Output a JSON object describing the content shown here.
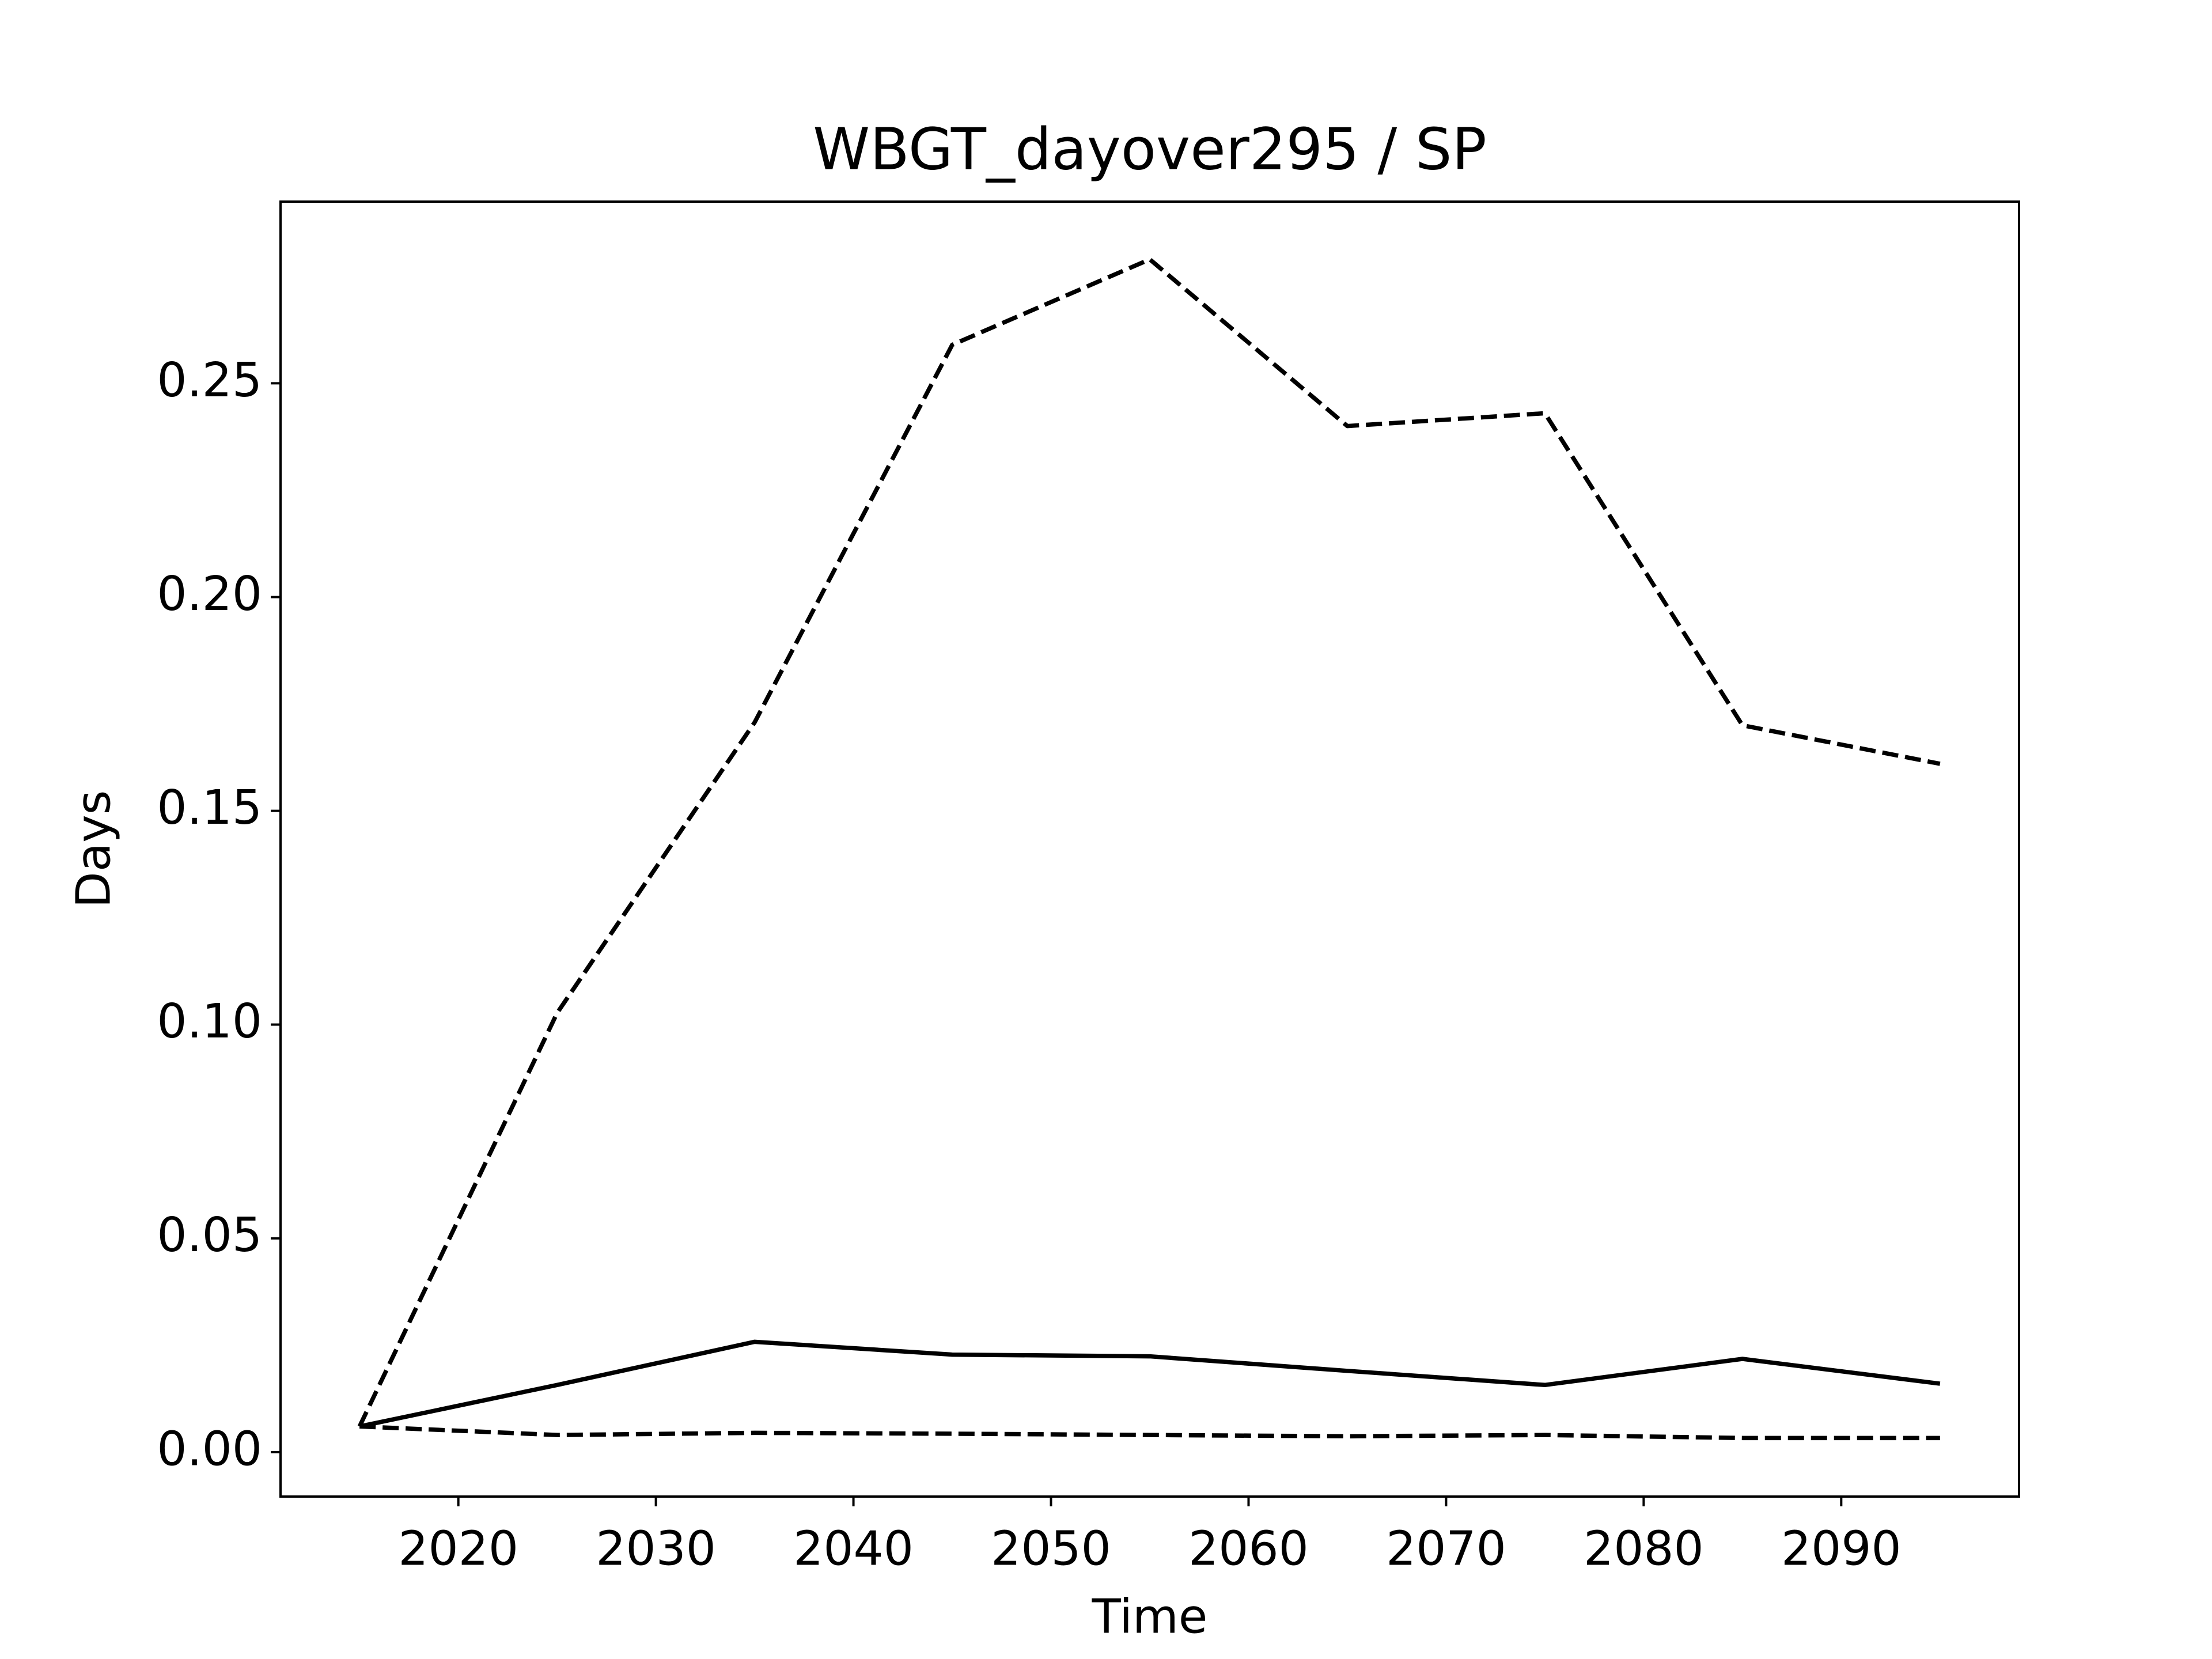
{
  "chart_data": {
    "type": "line",
    "title": "WBGT_dayover295 / SP",
    "x_label": "Time",
    "y_label": "Days",
    "x": [
      2015,
      2025,
      2035,
      2045,
      2055,
      2065,
      2075,
      2085,
      2095
    ],
    "series": [
      {
        "color": "#000000",
        "linestyle": "dashed",
        "values": [
          0.006,
          0.1027,
          0.1707,
          0.259,
          0.279,
          0.24,
          0.243,
          0.17,
          0.161
        ]
      },
      {
        "color": "#000000",
        "linestyle": "solid",
        "values": [
          0.006,
          0.0157,
          0.0258,
          0.0228,
          0.0224,
          0.019,
          0.0157,
          0.0218,
          0.016
        ]
      },
      {
        "color": "#000000",
        "linestyle": "dashed",
        "values": [
          0.006,
          0.004,
          0.0045,
          0.0043,
          0.004,
          0.0037,
          0.004,
          0.0033,
          0.0033
        ]
      }
    ],
    "xlim": [
      2011,
      2099
    ],
    "xticks": [
      2020,
      2030,
      2040,
      2050,
      2060,
      2070,
      2080,
      2090
    ],
    "ylim": [
      -0.0104,
      0.2925
    ],
    "yticks": [
      {
        "value": 0,
        "label": "0.00"
      },
      0.05,
      {
        "value": 0.1,
        "label": "0.10"
      },
      0.15,
      {
        "value": 0.2,
        "label": "0.20"
      },
      0.25
    ],
    "grid": false
  }
}
